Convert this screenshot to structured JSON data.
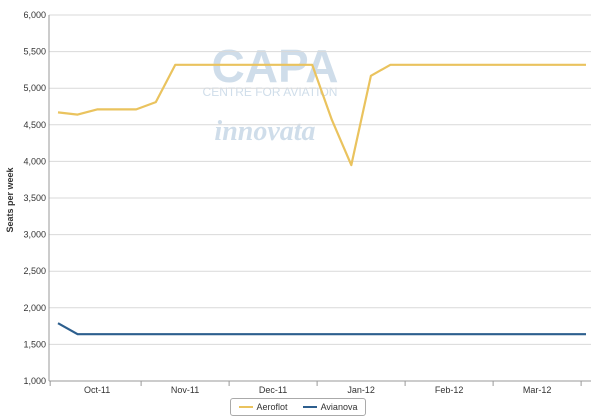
{
  "chart_data": {
    "type": "line",
    "ylabel": "Seats per week",
    "ylim": [
      1000,
      6000
    ],
    "yticks": [
      "1,000",
      "1,500",
      "2,000",
      "2,500",
      "3,000",
      "3,500",
      "4,000",
      "4,500",
      "5,000",
      "5,500",
      "6,000"
    ],
    "ytick_values": [
      1000,
      1500,
      2000,
      2500,
      3000,
      3500,
      4000,
      4500,
      5000,
      5500,
      6000
    ],
    "xticks": [
      "Oct-11",
      "Nov-11",
      "Dec-11",
      "Jan-12",
      "Feb-12",
      "Mar-12"
    ],
    "xtick_positions": [
      2,
      6.5,
      11,
      15.5,
      20,
      24.5
    ],
    "x": [
      0,
      1,
      2,
      3,
      4,
      5,
      6,
      7,
      8,
      9,
      10,
      11,
      12,
      13,
      14,
      15,
      16,
      17,
      18,
      19,
      20,
      21,
      22,
      23,
      24,
      25,
      26,
      27
    ],
    "xlim": [
      0,
      27
    ],
    "grid": true,
    "legend_position": "bottom",
    "series": [
      {
        "name": "Aeroflot",
        "color": "#eac35e",
        "values": [
          4670,
          4640,
          4710,
          4710,
          4710,
          4810,
          5320,
          5320,
          5320,
          5320,
          5320,
          5320,
          5320,
          5320,
          4570,
          3950,
          5170,
          5320,
          5320,
          5320,
          5320,
          5320,
          5320,
          5320,
          5320,
          5320,
          5320,
          5320
        ]
      },
      {
        "name": "Avianova",
        "color": "#2d5f8e",
        "values": [
          1790,
          1640,
          1640,
          1640,
          1640,
          1640,
          1640,
          1640,
          1640,
          1640,
          1640,
          1640,
          1640,
          1640,
          1640,
          1640,
          1640,
          1640,
          1640,
          1640,
          1640,
          1640,
          1640,
          1640,
          1640,
          1640,
          1640,
          1640
        ]
      }
    ]
  },
  "watermark": {
    "brand": "CAPA",
    "tagline": "CENTRE FOR AVIATION",
    "partner": "innovata"
  }
}
